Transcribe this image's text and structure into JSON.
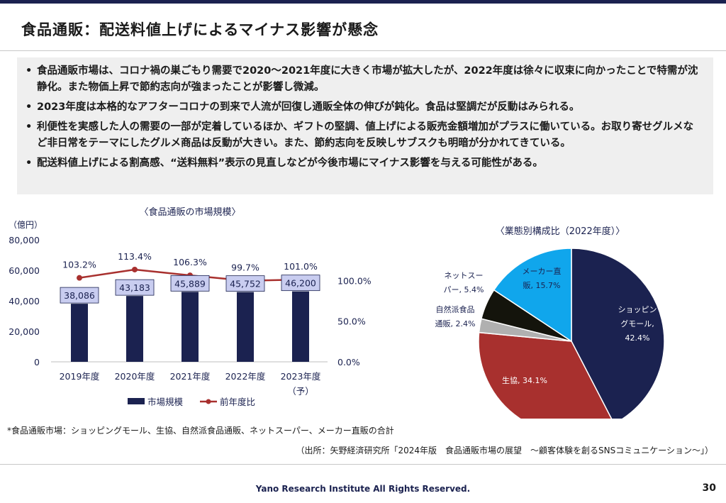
{
  "title": "食品通販：配送料値上げによるマイナス影響が懸念",
  "bullets": [
    "食品通販市場は、コロナ禍の巣ごもり需要で2020～2021年度に大きく市場が拡大したが、2022年度は徐々に収束に向かったことで特需が沈静化。また物価上昇で節約志向が強まったことが影響し微減。",
    "2023年度は本格的なアフターコロナの到来で人流が回復し通販全体の伸びが鈍化。食品は堅調だが反動はみられる。",
    "利便性を実感した人の需要の一部が定着しているほか、ギフトの堅調、値上げによる販売金額増加がプラスに働いている。お取り寄せグルメなど非日常をテーマにしたグルメ商品は反動が大きい。また、節約志向を反映しサブスクも明暗が分かれてきている。",
    "配送料値上げによる割高感、“送料無料”表示の見直しなどが今後市場にマイナス影響を与える可能性がある。"
  ],
  "bullet_marker": "•",
  "chart_data": [
    {
      "type": "bar",
      "title": "〈食品通販の市場規模〉",
      "unit_label": "（億円）",
      "categories": [
        "2019年度",
        "2020年度",
        "2021年度",
        "2022年度",
        "2023年度"
      ],
      "category_note": "（予）",
      "series": [
        {
          "name": "市場規模",
          "type": "bar",
          "color": "#1b2250",
          "values": [
            38086,
            43183,
            45889,
            45752,
            46200
          ],
          "labels": [
            "38,086",
            "43,183",
            "45,889",
            "45,752",
            "46,200"
          ]
        },
        {
          "name": "前年度比",
          "type": "line",
          "color": "#a8302e",
          "axis": "secondary",
          "values": [
            103.2,
            113.4,
            106.3,
            99.7,
            101.0
          ],
          "labels": [
            "103.2%",
            "113.4%",
            "106.3%",
            "99.7%",
            "101.0%"
          ]
        }
      ],
      "ylim": [
        0,
        80000
      ],
      "yticks": [
        "80,000",
        "60,000",
        "40,000",
        "20,000",
        "0"
      ],
      "ytick_values": [
        80000,
        60000,
        40000,
        20000,
        0
      ],
      "y2lim": [
        0,
        150
      ],
      "y2ticks": [
        "100.0%",
        "50.0%",
        "0.0%"
      ],
      "y2tick_values": [
        100,
        50,
        0
      ]
    },
    {
      "type": "pie",
      "title": "〈業態別構成比（2022年度）〉",
      "slices": [
        {
          "label": [
            "ショッピン",
            "グモール,",
            "42.4%"
          ],
          "value": 42.4,
          "color": "#1b2250"
        },
        {
          "label": [
            "生協, 34.1%"
          ],
          "value": 34.1,
          "color": "#a8302e"
        },
        {
          "label": [
            "自然派食品",
            "通販, 2.4%"
          ],
          "value": 2.4,
          "color": "#b0b0b0"
        },
        {
          "label": [
            "ネットスー",
            "パー, 5.4%"
          ],
          "value": 5.4,
          "color": "#14140c"
        },
        {
          "label": [
            "メーカー直",
            "販, 15.7%"
          ],
          "value": 15.7,
          "color": "#10a6ec"
        }
      ]
    }
  ],
  "note": "*食品通販市場：ショッピングモール、生協、自然派食品通販、ネットスーパー、メーカー直販の合計",
  "source": "（出所：矢野経済研究所「2024年版　食品通販市場の展望　～顧客体験を創るSNSコミュニケーション～」）",
  "footer": "Yano Research Institute All Rights Reserved.",
  "page_number": "30"
}
